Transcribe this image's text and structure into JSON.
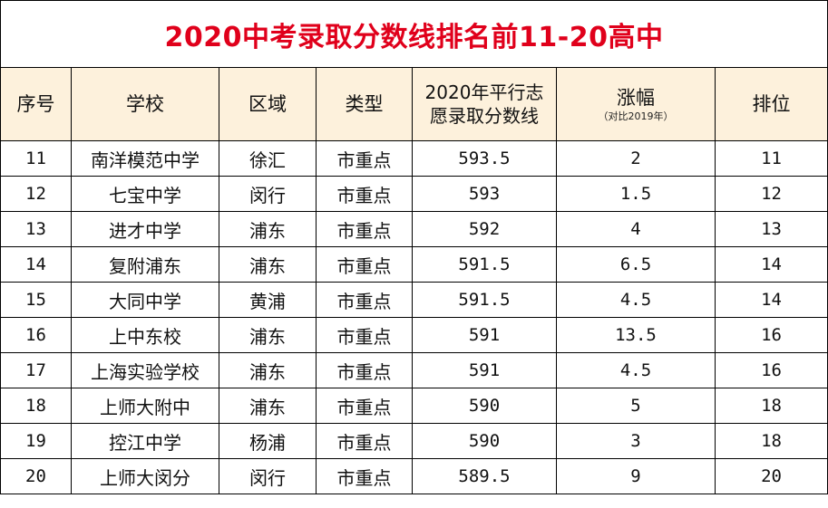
{
  "title": "2020中考录取分数线排名前11-20高中",
  "headers": {
    "seq": "序号",
    "school": "学校",
    "district": "区域",
    "type": "类型",
    "score_line1": "2020年平行志",
    "score_line2": "愿录取分数线",
    "rise": "涨幅",
    "rise_note": "（对比2019年）",
    "rank": "排位"
  },
  "rows": [
    {
      "seq": "11",
      "school": "南洋模范中学",
      "district": "徐汇",
      "type": "市重点",
      "score": "593.5",
      "rise": "2",
      "rank": "11"
    },
    {
      "seq": "12",
      "school": "七宝中学",
      "district": "闵行",
      "type": "市重点",
      "score": "593",
      "rise": "1.5",
      "rank": "12"
    },
    {
      "seq": "13",
      "school": "进才中学",
      "district": "浦东",
      "type": "市重点",
      "score": "592",
      "rise": "4",
      "rank": "13"
    },
    {
      "seq": "14",
      "school": "复附浦东",
      "district": "浦东",
      "type": "市重点",
      "score": "591.5",
      "rise": "6.5",
      "rank": "14"
    },
    {
      "seq": "15",
      "school": "大同中学",
      "district": "黄浦",
      "type": "市重点",
      "score": "591.5",
      "rise": "4.5",
      "rank": "14"
    },
    {
      "seq": "16",
      "school": "上中东校",
      "district": "浦东",
      "type": "市重点",
      "score": "591",
      "rise": "13.5",
      "rank": "16"
    },
    {
      "seq": "17",
      "school": "上海实验学校",
      "district": "浦东",
      "type": "市重点",
      "score": "591",
      "rise": "4.5",
      "rank": "16"
    },
    {
      "seq": "18",
      "school": "上师大附中",
      "district": "浦东",
      "type": "市重点",
      "score": "590",
      "rise": "5",
      "rank": "18"
    },
    {
      "seq": "19",
      "school": "控江中学",
      "district": "杨浦",
      "type": "市重点",
      "score": "590",
      "rise": "3",
      "rank": "18"
    },
    {
      "seq": "20",
      "school": "上师大闵分",
      "district": "闵行",
      "type": "市重点",
      "score": "589.5",
      "rise": "9",
      "rank": "20"
    }
  ],
  "colors": {
    "title": "#e0001b",
    "header_bg": "#fdf1dc",
    "border": "#000000"
  }
}
